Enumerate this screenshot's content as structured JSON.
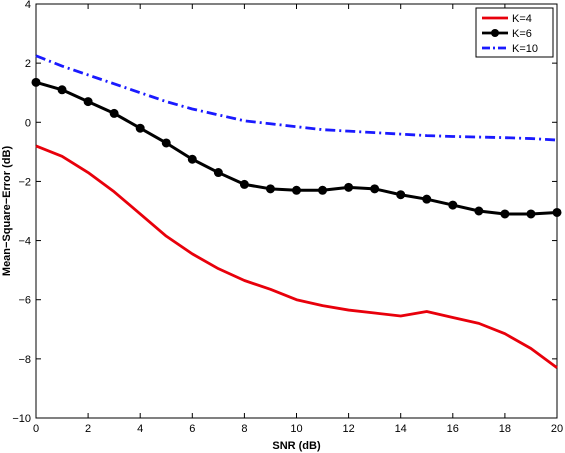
{
  "chart_data": {
    "type": "line",
    "xlabel": "SNR (dB)",
    "ylabel": "Mean−Square−Error (dB)",
    "xlim": [
      0,
      20
    ],
    "ylim": [
      -10,
      4
    ],
    "xticks": [
      0,
      2,
      4,
      6,
      8,
      10,
      12,
      14,
      16,
      18,
      20
    ],
    "yticks": [
      -10,
      -8,
      -6,
      -4,
      -2,
      0,
      2,
      4
    ],
    "grid": false,
    "legend_position": "top-right",
    "x": [
      0,
      1,
      2,
      3,
      4,
      5,
      6,
      7,
      8,
      9,
      10,
      11,
      12,
      13,
      14,
      15,
      16,
      17,
      18,
      19,
      20
    ],
    "series": [
      {
        "name": "K=4",
        "color": "#e8000b",
        "line_style": "solid",
        "marker": "none",
        "values": [
          -0.8,
          -1.15,
          -1.7,
          -2.35,
          -3.1,
          -3.85,
          -4.45,
          -4.95,
          -5.35,
          -5.65,
          -6.0,
          -6.2,
          -6.35,
          -6.45,
          -6.55,
          -6.4,
          -6.6,
          -6.8,
          -7.15,
          -7.65,
          -8.3
        ]
      },
      {
        "name": "K=6",
        "color": "#000000",
        "line_style": "solid",
        "marker": "circle",
        "values": [
          1.35,
          1.1,
          0.7,
          0.3,
          -0.2,
          -0.7,
          -1.25,
          -1.7,
          -2.1,
          -2.25,
          -2.3,
          -2.3,
          -2.2,
          -2.25,
          -2.45,
          -2.6,
          -2.8,
          -3.0,
          -3.1,
          -3.1,
          -3.05
        ]
      },
      {
        "name": "K=10",
        "color": "#1a1aff",
        "line_style": "dashdot",
        "marker": "none",
        "values": [
          2.25,
          1.9,
          1.6,
          1.3,
          1.0,
          0.7,
          0.45,
          0.25,
          0.05,
          -0.05,
          -0.15,
          -0.25,
          -0.3,
          -0.35,
          -0.4,
          -0.45,
          -0.48,
          -0.5,
          -0.52,
          -0.55,
          -0.6
        ]
      }
    ]
  }
}
